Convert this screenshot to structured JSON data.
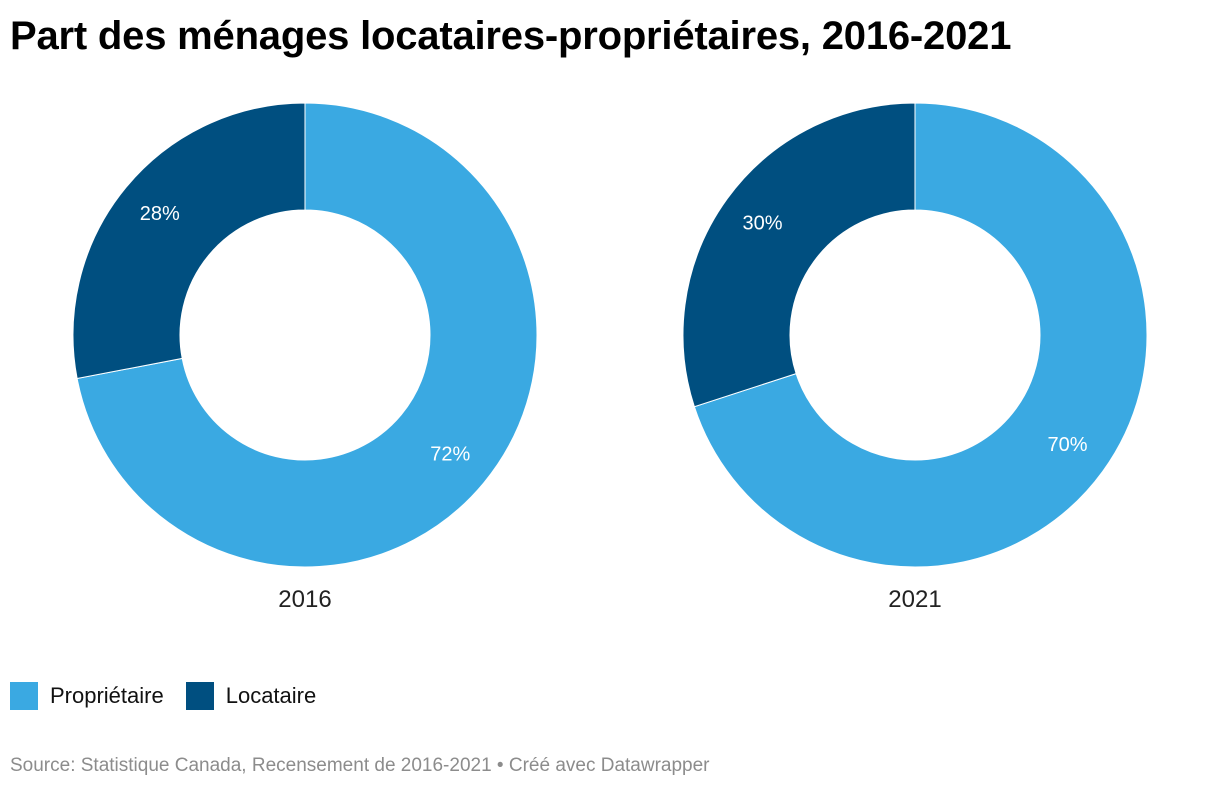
{
  "title": "Part des ménages locataires-propriétaires, 2016-2021",
  "colors": {
    "proprietaire": "#3aa9e2",
    "locataire": "#004f80"
  },
  "legend": [
    {
      "label": "Propriétaire",
      "color": "#3aa9e2"
    },
    {
      "label": "Locataire",
      "color": "#004f80"
    }
  ],
  "source": "Source: Statistique Canada, Recensement de 2016-2021 • Créé avec Datawrapper",
  "chart_data": [
    {
      "type": "pie",
      "title": "2016",
      "categories": [
        "Propriétaire",
        "Locataire"
      ],
      "values": [
        72,
        28
      ],
      "labels": [
        "72%",
        "28%"
      ]
    },
    {
      "type": "pie",
      "title": "2021",
      "categories": [
        "Propriétaire",
        "Locataire"
      ],
      "values": [
        70,
        30
      ],
      "labels": [
        "70%",
        "30%"
      ]
    }
  ]
}
